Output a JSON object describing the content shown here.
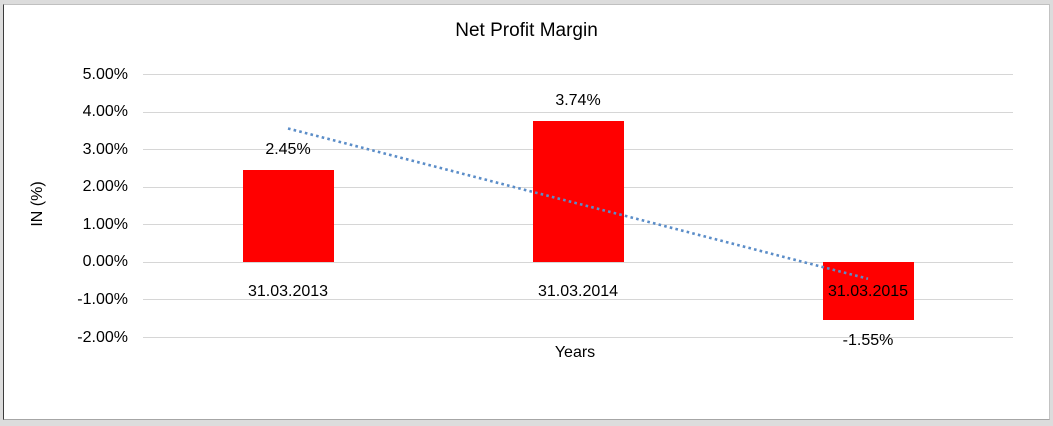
{
  "chart_data": {
    "type": "bar",
    "title": "Net Profit Margin",
    "xlabel": "Years",
    "ylabel": "IN (%)",
    "categories": [
      "31.03.2013",
      "31.03.2014",
      "31.03.2015"
    ],
    "values": [
      2.45,
      3.74,
      -1.55
    ],
    "value_labels": [
      "2.45%",
      "3.74%",
      "-1.55%"
    ],
    "ylim": [
      -2,
      5
    ],
    "ytick_step": 1,
    "ytick_labels": [
      "5.00%",
      "4.00%",
      "3.00%",
      "2.00%",
      "1.00%",
      "0.00%",
      "-1.00%",
      "-2.00%"
    ],
    "grid": true,
    "legend": "none",
    "bar_color": "#ff0000",
    "gridline_color": "#d6d6d6",
    "trendline": {
      "style": "dotted",
      "color": "#5b8dc8",
      "start_value": 3.55,
      "end_value": -0.45
    }
  }
}
